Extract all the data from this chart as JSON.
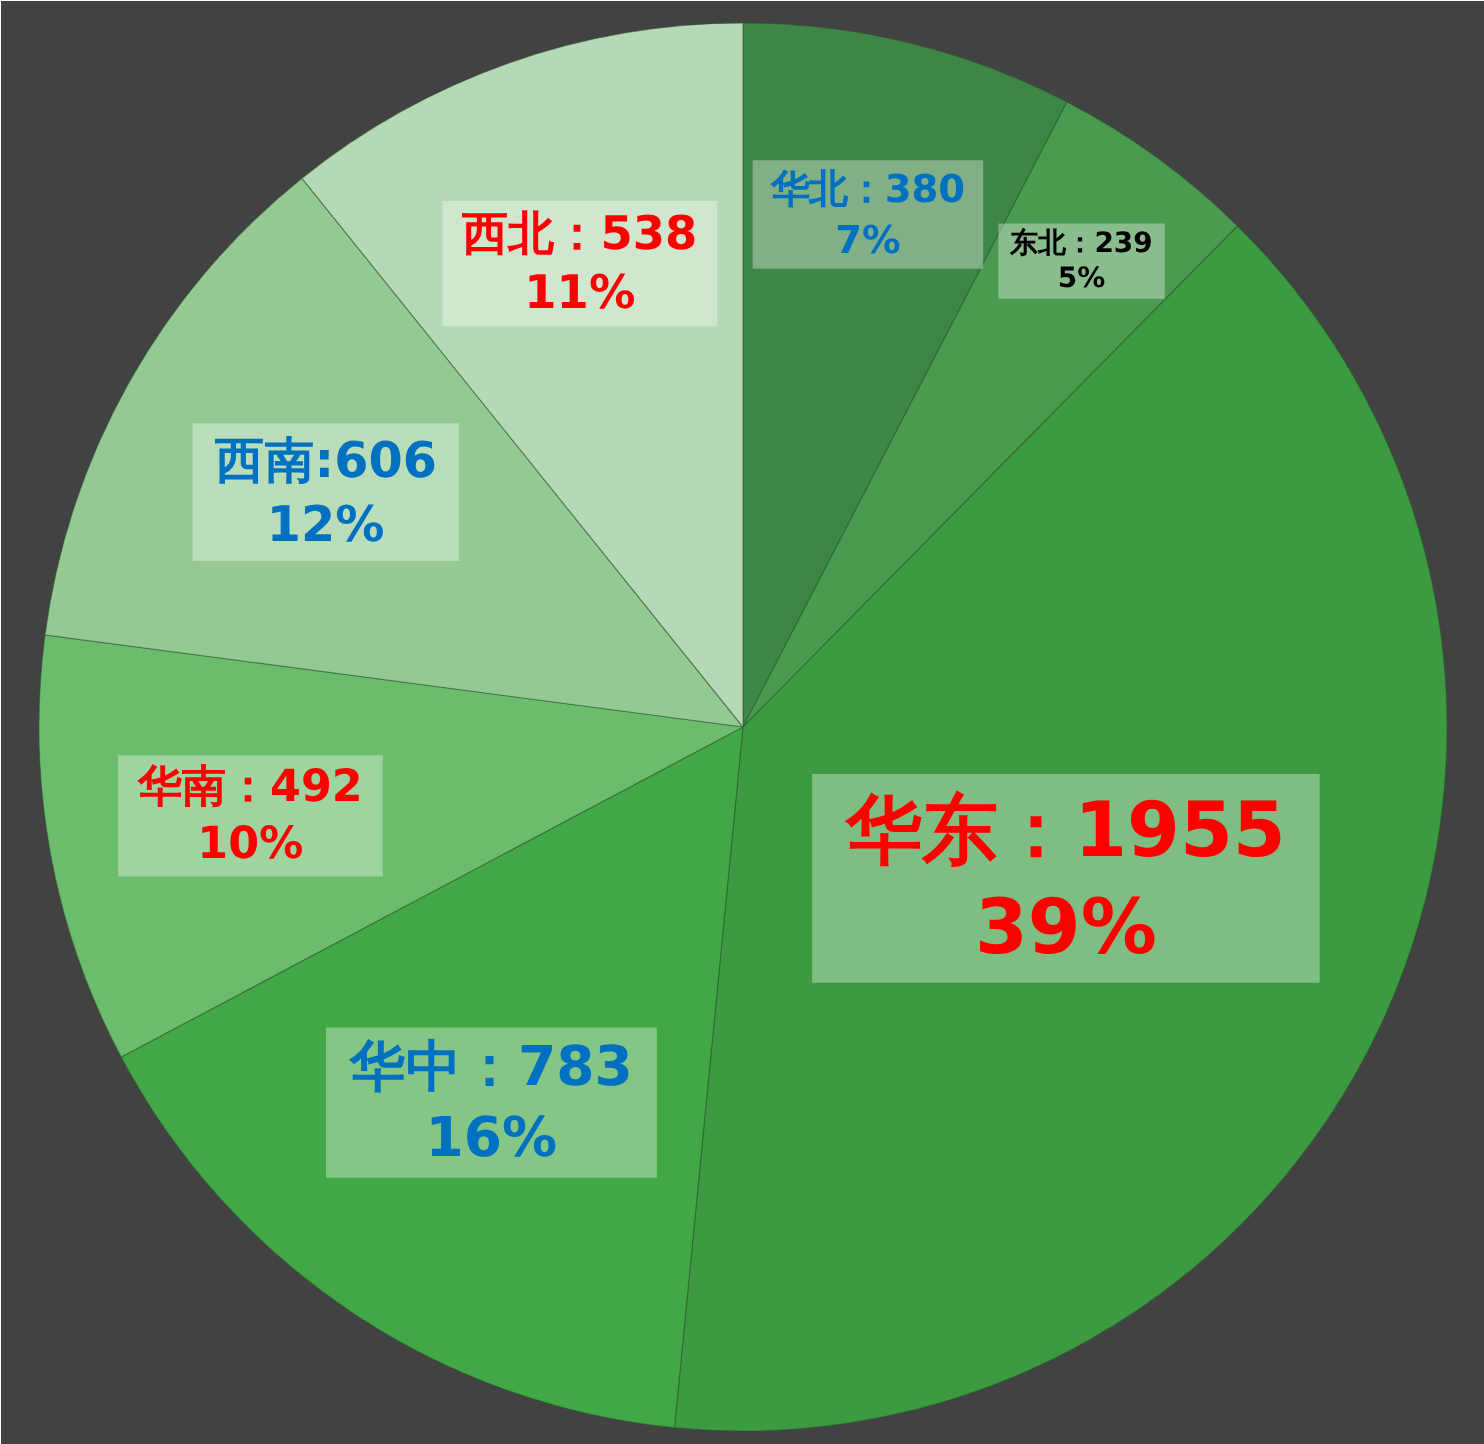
{
  "chart_data": {
    "type": "pie",
    "categories": [
      "华北",
      "东北",
      "华东",
      "华中",
      "华南",
      "西南",
      "西北"
    ],
    "values": [
      380,
      239,
      1955,
      783,
      492,
      606,
      538
    ],
    "colors": [
      "#3e8646",
      "#4a9a50",
      "#3c9a40",
      "#42a846",
      "#6cbc6e",
      "#94c994",
      "#b5d9b5"
    ],
    "value_labels": [
      "：380\n7%",
      "：239\n5%",
      "：1955\n39%",
      "：783\n16%",
      "：492\n10%",
      ":606\n12%",
      "：538\n11%"
    ]
  }
}
